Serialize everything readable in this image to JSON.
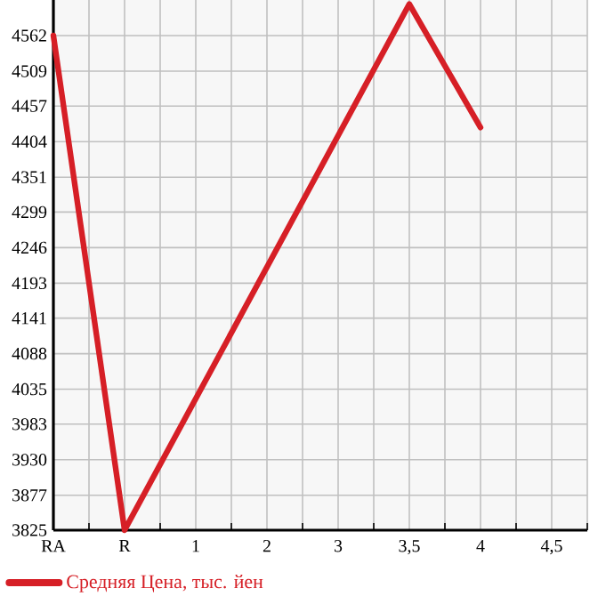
{
  "chart_data": {
    "type": "line",
    "categories": [
      "RA",
      "R",
      "1",
      "2",
      "3",
      "3,5",
      "4",
      "4,5"
    ],
    "series": [
      {
        "name": "Средняя Цена, тыс. йен",
        "color": "#d61f26",
        "values": [
          4562,
          3825,
          null,
          null,
          null,
          4609,
          4425,
          null
        ]
      }
    ],
    "ylim": [
      3825,
      4615
    ],
    "yticks": [
      3825,
      3877,
      3930,
      3983,
      4035,
      4088,
      4141,
      4193,
      4246,
      4299,
      4351,
      4404,
      4457,
      4509,
      4562
    ],
    "grid": true,
    "legend": "bottom left",
    "marker": "none",
    "line_style": "solid"
  }
}
